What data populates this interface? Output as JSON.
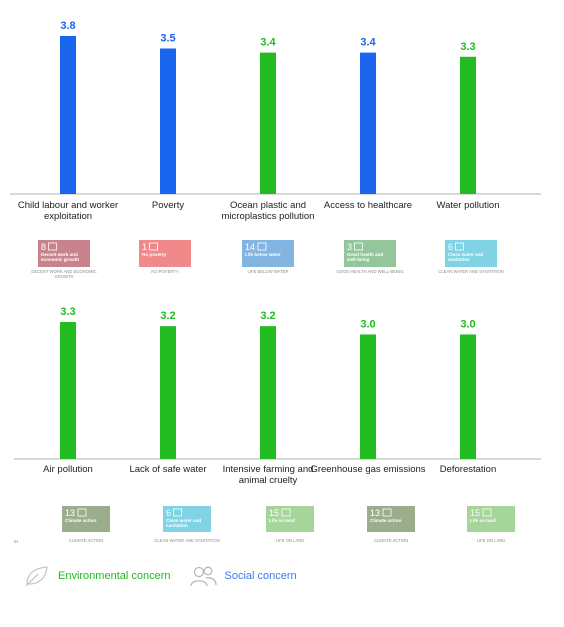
{
  "chart_data": [
    {
      "type": "bar",
      "categories": [
        "Child labour and worker exploitation",
        "Poverty",
        "Ocean plastic and microplastics pollution",
        "Access to healthcare",
        "Water pollution"
      ],
      "values": [
        3.8,
        3.5,
        3.4,
        3.4,
        3.3
      ],
      "concern": [
        "social",
        "social",
        "environmental",
        "social",
        "environmental"
      ],
      "value_labels": [
        "3.8",
        "3.5",
        "3.4",
        "3.4",
        "3.3"
      ],
      "sdgs": [
        {
          "number": "8",
          "title": "Decent work and economic growth",
          "caption": "DECENT WORK AND ECONOMIC GROWTH",
          "color": "#c9838c"
        },
        {
          "number": "1",
          "title": "No poverty",
          "caption": "NO POVERTY",
          "color": "#f08a8a"
        },
        {
          "number": "14",
          "title": "Life below water",
          "caption": "LIFE BELOW WATER",
          "color": "#82b6e0"
        },
        {
          "number": "3",
          "title": "Good health and well-being",
          "caption": "GOOD HEALTH AND WELL-BEING",
          "color": "#93c79b"
        },
        {
          "number": "6",
          "title": "Clean water and sanitation",
          "caption": "CLEAN WATER AND SANITATION",
          "color": "#7fd3e4"
        }
      ]
    },
    {
      "type": "bar",
      "categories": [
        "Air pollution",
        "Lack of safe water",
        "Intensive farming and animal cruelty",
        "Greenhouse gas emissions",
        "Deforestation"
      ],
      "values": [
        3.3,
        3.2,
        3.2,
        3.0,
        3.0
      ],
      "concern": [
        "environmental",
        "environmental",
        "environmental",
        "environmental",
        "environmental"
      ],
      "value_labels": [
        "3.3",
        "3.2",
        "3.2",
        "3.0",
        "3.0"
      ],
      "sdgs": [
        {
          "number": "13",
          "title": "Climate action",
          "caption": "CLIMATE ACTION",
          "color": "#9aae8c"
        },
        {
          "number": "6",
          "title": "Clean water and sanitation",
          "caption": "CLEAN WATER AND SANITATION",
          "color": "#7fd3e4"
        },
        {
          "number": "15",
          "title": "Life on land",
          "caption": "LIFE ON LAND",
          "color": "#a5d59b"
        },
        {
          "number": "13",
          "title": "Climate action",
          "caption": "CLIMATE ACTION",
          "color": "#9aae8c"
        },
        {
          "number": "15",
          "title": "Life on land",
          "caption": "LIFE ON LAND",
          "color": "#a5d59b"
        }
      ]
    }
  ],
  "stray_text": "IN",
  "colors": {
    "environmental": "#22bb22",
    "social": "#1a66ee",
    "axis": "#b0b0b0"
  },
  "legend": {
    "environmental": {
      "label": "Environmental concern",
      "icon": "leaf-icon"
    },
    "social": {
      "label": "Social concern",
      "icon": "people-icon"
    }
  }
}
